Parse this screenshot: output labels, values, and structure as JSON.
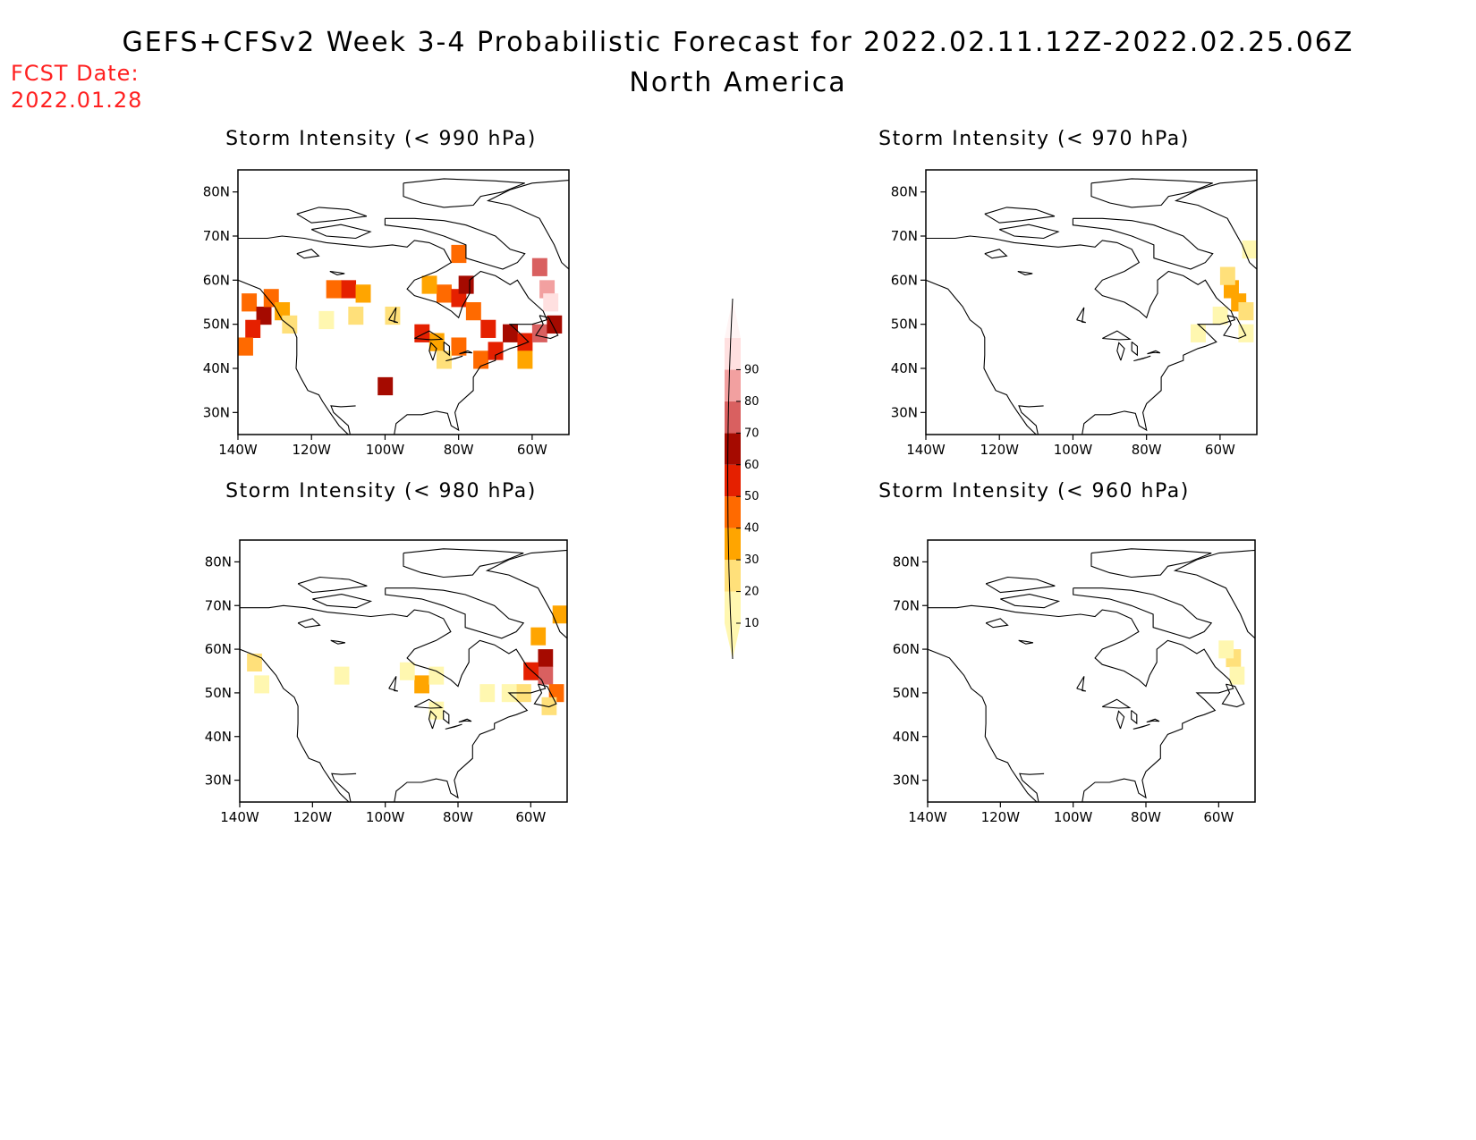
{
  "title": {
    "line1": "GEFS+CFSv2 Week 3-4 Probabilistic Forecast for 2022.02.11.12Z-2022.02.25.06Z",
    "line2": "North America"
  },
  "forecast_date": {
    "label": "FCST Date:",
    "value": "2022.01.28"
  },
  "colorbar": {
    "levels": [
      "10",
      "20",
      "30",
      "40",
      "50",
      "60",
      "70",
      "80",
      "90"
    ],
    "colors": [
      "#fff7b0",
      "#ffe07a",
      "#ffa500",
      "#ff6a00",
      "#e52000",
      "#a50a00",
      "#d96060",
      "#f2a0a0",
      "#ffe0e0"
    ]
  },
  "axes": {
    "lat_labels": [
      "80N",
      "70N",
      "60N",
      "50N",
      "40N",
      "30N"
    ],
    "lon_labels": [
      "140W",
      "120W",
      "100W",
      "80W",
      "60W"
    ]
  },
  "chart_data": [
    {
      "type": "heatmap",
      "title": "Storm Intensity (< 990 hPa)",
      "cells": [
        {
          "lon": -137,
          "lat": 55,
          "v": 45
        },
        {
          "lon": -133,
          "lat": 52,
          "v": 60
        },
        {
          "lon": -131,
          "lat": 56,
          "v": 40
        },
        {
          "lon": -128,
          "lat": 53,
          "v": 30
        },
        {
          "lon": -136,
          "lat": 49,
          "v": 55
        },
        {
          "lon": -126,
          "lat": 50,
          "v": 20
        },
        {
          "lon": -138,
          "lat": 45,
          "v": 40
        },
        {
          "lon": -110,
          "lat": 58,
          "v": 50
        },
        {
          "lon": -106,
          "lat": 57,
          "v": 30
        },
        {
          "lon": -114,
          "lat": 58,
          "v": 40
        },
        {
          "lon": -108,
          "lat": 52,
          "v": 20
        },
        {
          "lon": -116,
          "lat": 51,
          "v": 15
        },
        {
          "lon": -98,
          "lat": 52,
          "v": 20
        },
        {
          "lon": -84,
          "lat": 57,
          "v": 45
        },
        {
          "lon": -88,
          "lat": 59,
          "v": 35
        },
        {
          "lon": -80,
          "lat": 56,
          "v": 50
        },
        {
          "lon": -78,
          "lat": 59,
          "v": 60
        },
        {
          "lon": -76,
          "lat": 53,
          "v": 45
        },
        {
          "lon": -72,
          "lat": 49,
          "v": 50
        },
        {
          "lon": -66,
          "lat": 48,
          "v": 65
        },
        {
          "lon": -62,
          "lat": 46,
          "v": 55
        },
        {
          "lon": -58,
          "lat": 48,
          "v": 70
        },
        {
          "lon": -54,
          "lat": 50,
          "v": 65
        },
        {
          "lon": -56,
          "lat": 58,
          "v": 80
        },
        {
          "lon": -58,
          "lat": 63,
          "v": 75
        },
        {
          "lon": -55,
          "lat": 55,
          "v": 90
        },
        {
          "lon": -80,
          "lat": 45,
          "v": 40
        },
        {
          "lon": -86,
          "lat": 46,
          "v": 30
        },
        {
          "lon": -74,
          "lat": 42,
          "v": 40
        },
        {
          "lon": -70,
          "lat": 44,
          "v": 55
        },
        {
          "lon": -90,
          "lat": 48,
          "v": 50
        },
        {
          "lon": -84,
          "lat": 42,
          "v": 20
        },
        {
          "lon": -100,
          "lat": 36,
          "v": 60
        },
        {
          "lon": -62,
          "lat": 42,
          "v": 30
        },
        {
          "lon": -80,
          "lat": 66,
          "v": 45
        }
      ]
    },
    {
      "type": "heatmap",
      "title": "Storm Intensity (< 970 hPa)",
      "cells": [
        {
          "lon": -57,
          "lat": 58,
          "v": 35
        },
        {
          "lon": -55,
          "lat": 55,
          "v": 30
        },
        {
          "lon": -58,
          "lat": 61,
          "v": 20
        },
        {
          "lon": -53,
          "lat": 53,
          "v": 20
        },
        {
          "lon": -60,
          "lat": 52,
          "v": 15
        },
        {
          "lon": -66,
          "lat": 48,
          "v": 10
        },
        {
          "lon": -52,
          "lat": 67,
          "v": 15
        },
        {
          "lon": -53,
          "lat": 48,
          "v": 15
        }
      ]
    },
    {
      "type": "heatmap",
      "title": "Storm Intensity (< 980 hPa)",
      "cells": [
        {
          "lon": -56,
          "lat": 58,
          "v": 60
        },
        {
          "lon": -56,
          "lat": 54,
          "v": 70
        },
        {
          "lon": -60,
          "lat": 55,
          "v": 50
        },
        {
          "lon": -53,
          "lat": 50,
          "v": 45
        },
        {
          "lon": -58,
          "lat": 63,
          "v": 30
        },
        {
          "lon": -52,
          "lat": 68,
          "v": 35
        },
        {
          "lon": -62,
          "lat": 50,
          "v": 20
        },
        {
          "lon": -55,
          "lat": 47,
          "v": 25
        },
        {
          "lon": -66,
          "lat": 50,
          "v": 15
        },
        {
          "lon": -136,
          "lat": 57,
          "v": 20
        },
        {
          "lon": -134,
          "lat": 52,
          "v": 15
        },
        {
          "lon": -112,
          "lat": 54,
          "v": 10
        },
        {
          "lon": -90,
          "lat": 52,
          "v": 30
        },
        {
          "lon": -86,
          "lat": 54,
          "v": 15
        },
        {
          "lon": -94,
          "lat": 55,
          "v": 10
        },
        {
          "lon": -72,
          "lat": 50,
          "v": 10
        },
        {
          "lon": -86,
          "lat": 46,
          "v": 15
        }
      ]
    },
    {
      "type": "heatmap",
      "title": "Storm Intensity (< 960 hPa)",
      "cells": [
        {
          "lon": -56,
          "lat": 58,
          "v": 20
        },
        {
          "lon": -55,
          "lat": 54,
          "v": 15
        },
        {
          "lon": -58,
          "lat": 60,
          "v": 12
        }
      ]
    }
  ]
}
